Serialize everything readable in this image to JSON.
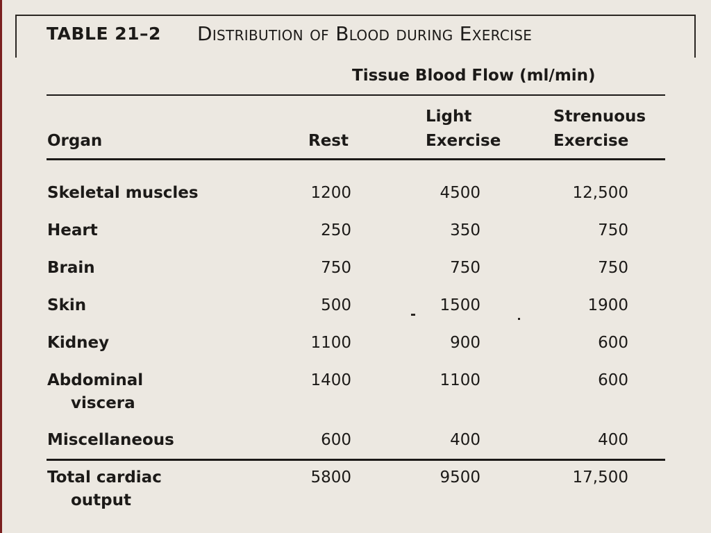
{
  "table": {
    "number": "TABLE 21–2",
    "title": "Distribution of Blood during Exercise",
    "group_header": "Tissue Blood Flow (ml/min)",
    "headers": {
      "organ": "Organ",
      "rest": "Rest",
      "light_line1": "Light",
      "light_line2": "Exercise",
      "strenuous_line1": "Strenuous",
      "strenuous_line2": "Exercise"
    },
    "rows": [
      {
        "organ": "Skeletal muscles",
        "organ_cont": "",
        "rest": "1200",
        "light": "4500",
        "strenuous": "12,500"
      },
      {
        "organ": "Heart",
        "organ_cont": "",
        "rest": "250",
        "light": "350",
        "strenuous": "750"
      },
      {
        "organ": "Brain",
        "organ_cont": "",
        "rest": "750",
        "light": "750",
        "strenuous": "750"
      },
      {
        "organ": "Skin",
        "organ_cont": "",
        "rest": "500",
        "light": "1500",
        "strenuous": "1900"
      },
      {
        "organ": "Kidney",
        "organ_cont": "",
        "rest": "1100",
        "light": "900",
        "strenuous": "600"
      },
      {
        "organ": "Abdominal",
        "organ_cont": "viscera",
        "rest": "1400",
        "light": "1100",
        "strenuous": "600"
      },
      {
        "organ": "Miscellaneous",
        "organ_cont": "",
        "rest": "600",
        "light": "400",
        "strenuous": "400"
      }
    ],
    "total": {
      "organ": "Total cardiac",
      "organ_cont": "output",
      "rest": "5800",
      "light": "9500",
      "strenuous": "17,500"
    }
  }
}
